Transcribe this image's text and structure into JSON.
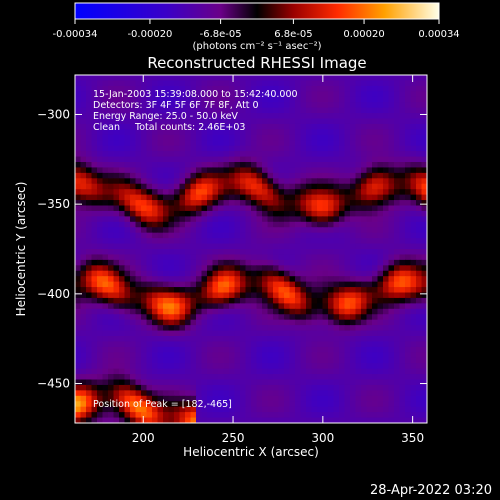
{
  "colorbar": {
    "tick_labels": [
      "-0.00034",
      "-0.00020",
      "-6.8e-05",
      "6.8e-05",
      "0.00020",
      "0.00034"
    ],
    "tick_values": [
      -0.00034,
      -0.0002,
      -6.8e-05,
      6.8e-05,
      0.0002,
      0.00034
    ],
    "range": [
      -0.00034,
      0.00034
    ],
    "unit_label": "(photons cm⁻² s⁻¹ asec⁻²)"
  },
  "chart_data": {
    "type": "heatmap",
    "title": "Reconstructed RHESSI Image",
    "xlabel": "Heliocentric X (arcsec)",
    "ylabel": "Heliocentric Y (arcsec)",
    "xlim": [
      162,
      358
    ],
    "ylim": [
      -472,
      -278
    ],
    "x_ticks": [
      200,
      250,
      300,
      350
    ],
    "y_ticks": [
      -300,
      -350,
      -400,
      -450
    ],
    "annotation_lines": [
      "15-Jan-2003 15:39:08.000 to 15:42:40.000",
      "Detectors: 3F 4F 5F 6F 7F 8F, Att 0",
      "Energy Range: 25.0 - 50.0 keV",
      "Clean     Total counts: 2.46E+03"
    ],
    "peak_label": "Position of Peak = [182,-465]",
    "peak": [
      182,
      -465
    ],
    "bright_bands": [
      {
        "x": [
          162,
          358
        ],
        "y_center": -345,
        "intensity": 0.00028
      },
      {
        "x": [
          162,
          358
        ],
        "y_center": -400,
        "intensity": 0.0003
      },
      {
        "x": [
          162,
          230
        ],
        "y_center": -465,
        "intensity": 0.00034
      }
    ],
    "grid": false
  },
  "footer": {
    "date": "28-Apr-2022 03:20"
  }
}
